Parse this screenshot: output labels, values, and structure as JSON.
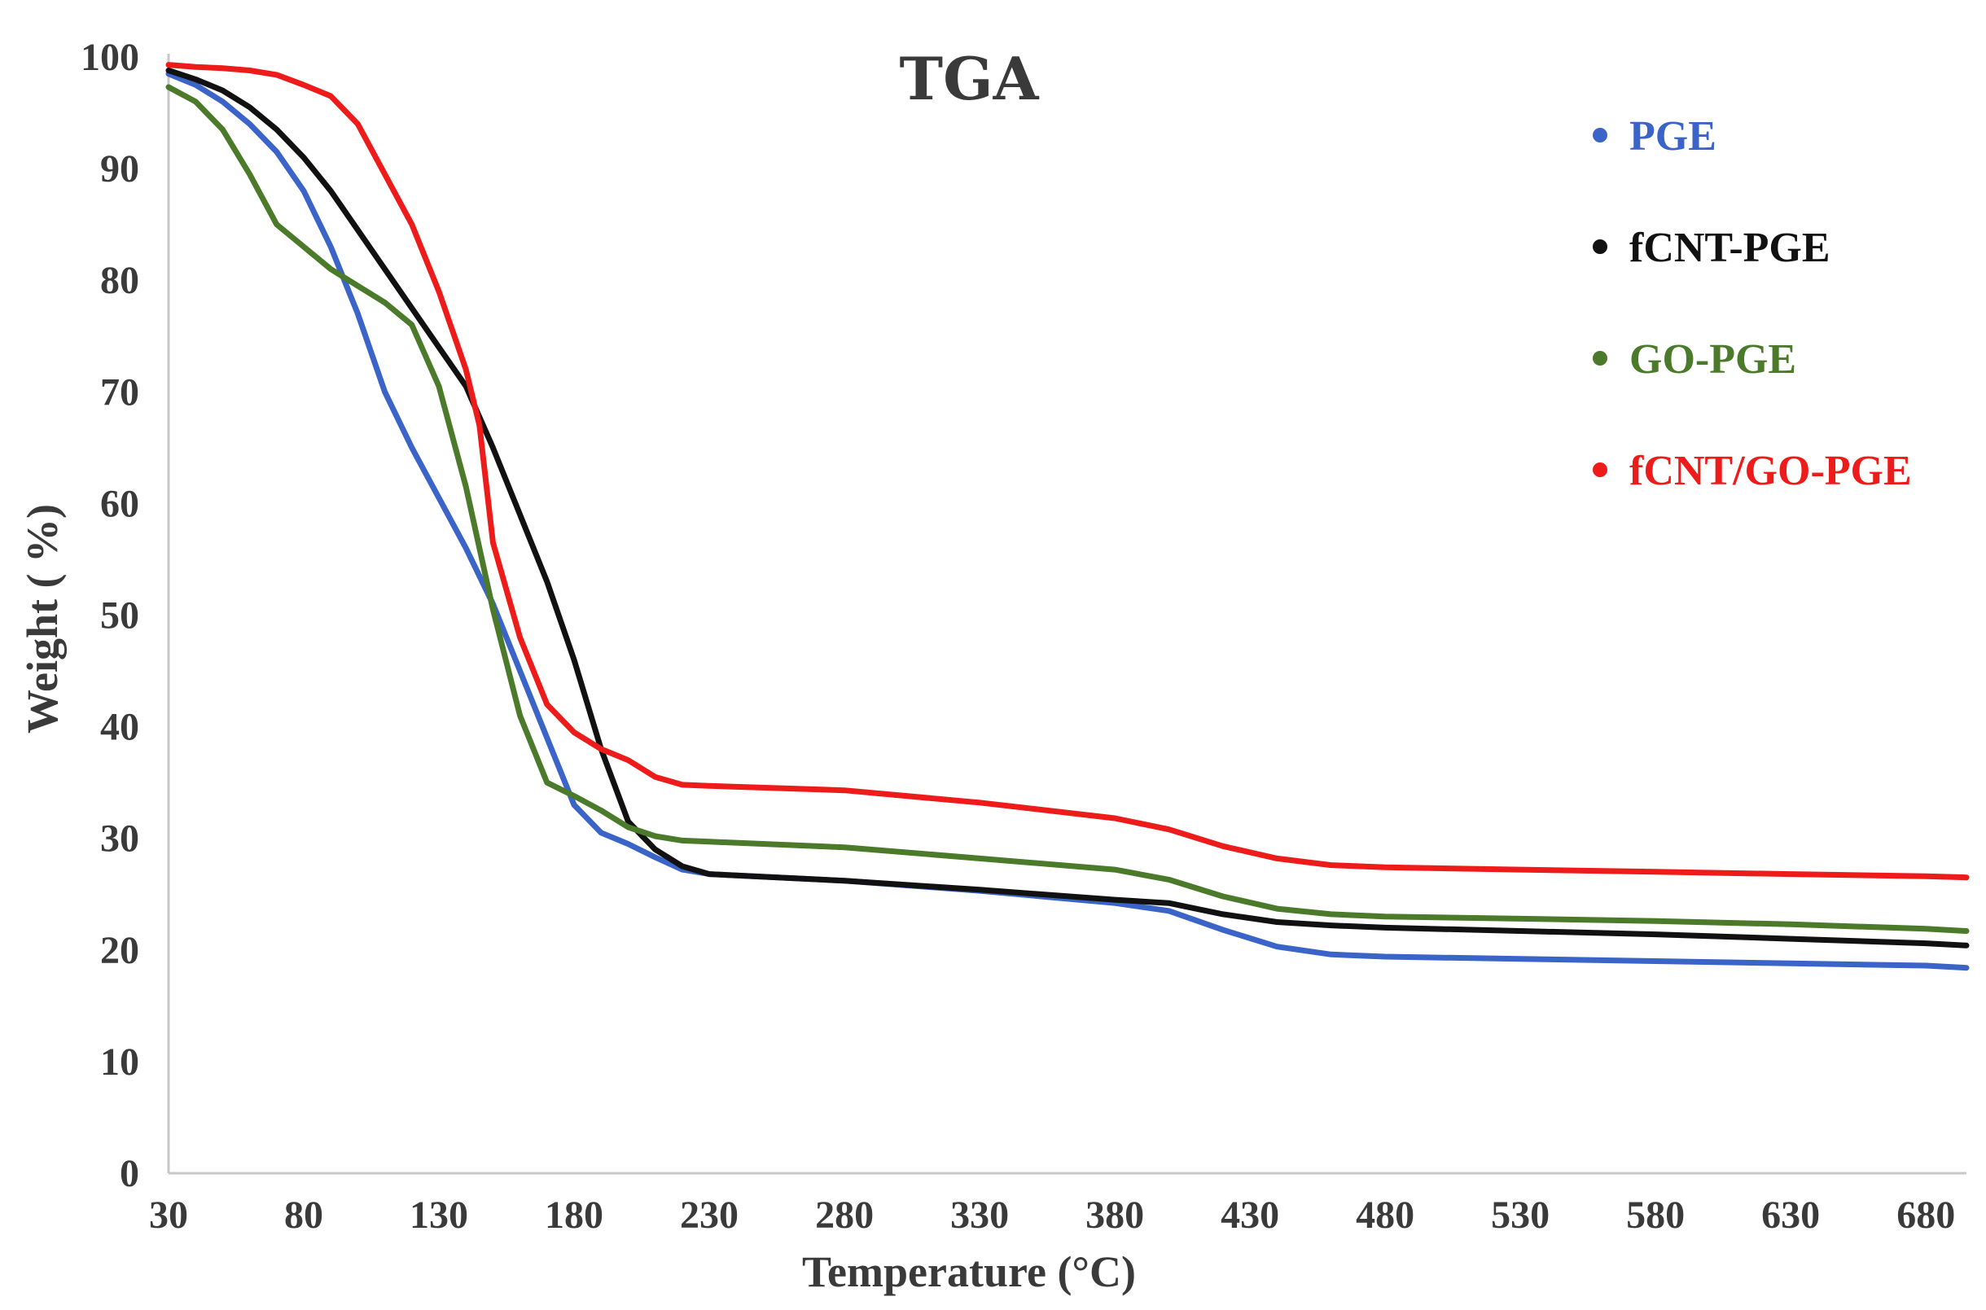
{
  "chart_data": {
    "type": "line",
    "title": "TGA",
    "xlabel": "Temperature (°C)",
    "ylabel": "Weight ( %)",
    "xlim": [
      30,
      695
    ],
    "ylim": [
      0,
      100
    ],
    "x_ticks": [
      30,
      80,
      130,
      180,
      230,
      280,
      330,
      380,
      430,
      480,
      530,
      580,
      630,
      680
    ],
    "y_ticks": [
      0,
      10,
      20,
      30,
      40,
      50,
      60,
      70,
      80,
      90,
      100
    ],
    "grid": false,
    "legend_position": "top-right",
    "series": [
      {
        "name": "PGE",
        "color": "#3b64c8",
        "points": [
          [
            30,
            98.5
          ],
          [
            40,
            97.5
          ],
          [
            50,
            96
          ],
          [
            60,
            94
          ],
          [
            70,
            91.5
          ],
          [
            80,
            88
          ],
          [
            90,
            83
          ],
          [
            100,
            77
          ],
          [
            110,
            70
          ],
          [
            120,
            65
          ],
          [
            130,
            60.5
          ],
          [
            140,
            56
          ],
          [
            150,
            51
          ],
          [
            160,
            45
          ],
          [
            170,
            39
          ],
          [
            180,
            33
          ],
          [
            190,
            30.5
          ],
          [
            200,
            29.5
          ],
          [
            210,
            28.3
          ],
          [
            220,
            27.2
          ],
          [
            230,
            26.8
          ],
          [
            280,
            26.2
          ],
          [
            330,
            25.3
          ],
          [
            380,
            24.2
          ],
          [
            400,
            23.5
          ],
          [
            420,
            21.8
          ],
          [
            440,
            20.3
          ],
          [
            460,
            19.6
          ],
          [
            480,
            19.4
          ],
          [
            530,
            19.2
          ],
          [
            580,
            19.0
          ],
          [
            630,
            18.8
          ],
          [
            680,
            18.6
          ],
          [
            695,
            18.4
          ]
        ]
      },
      {
        "name": "fCNT-PGE",
        "color": "#111111",
        "points": [
          [
            30,
            98.8
          ],
          [
            40,
            98
          ],
          [
            50,
            97
          ],
          [
            60,
            95.5
          ],
          [
            70,
            93.5
          ],
          [
            80,
            91
          ],
          [
            90,
            88
          ],
          [
            100,
            84.5
          ],
          [
            110,
            81
          ],
          [
            120,
            77.5
          ],
          [
            130,
            74
          ],
          [
            140,
            70.5
          ],
          [
            150,
            65
          ],
          [
            160,
            59
          ],
          [
            170,
            53
          ],
          [
            180,
            46
          ],
          [
            190,
            38
          ],
          [
            200,
            31.5
          ],
          [
            210,
            29
          ],
          [
            220,
            27.5
          ],
          [
            230,
            26.8
          ],
          [
            280,
            26.2
          ],
          [
            330,
            25.4
          ],
          [
            380,
            24.5
          ],
          [
            400,
            24.2
          ],
          [
            420,
            23.2
          ],
          [
            440,
            22.5
          ],
          [
            460,
            22.2
          ],
          [
            480,
            22.0
          ],
          [
            530,
            21.7
          ],
          [
            580,
            21.4
          ],
          [
            630,
            21.0
          ],
          [
            680,
            20.6
          ],
          [
            695,
            20.4
          ]
        ]
      },
      {
        "name": "GO-PGE",
        "color": "#4a7a2a",
        "points": [
          [
            30,
            97.3
          ],
          [
            40,
            96
          ],
          [
            50,
            93.5
          ],
          [
            60,
            89.5
          ],
          [
            70,
            85
          ],
          [
            80,
            83
          ],
          [
            90,
            81
          ],
          [
            100,
            79.5
          ],
          [
            110,
            78
          ],
          [
            120,
            76
          ],
          [
            130,
            70.5
          ],
          [
            140,
            61.5
          ],
          [
            150,
            50.5
          ],
          [
            160,
            41
          ],
          [
            170,
            35
          ],
          [
            180,
            33.8
          ],
          [
            190,
            32.5
          ],
          [
            200,
            31
          ],
          [
            210,
            30.2
          ],
          [
            220,
            29.8
          ],
          [
            230,
            29.7
          ],
          [
            280,
            29.2
          ],
          [
            330,
            28.2
          ],
          [
            380,
            27.2
          ],
          [
            400,
            26.3
          ],
          [
            420,
            24.8
          ],
          [
            440,
            23.7
          ],
          [
            460,
            23.2
          ],
          [
            480,
            23.0
          ],
          [
            530,
            22.8
          ],
          [
            580,
            22.6
          ],
          [
            630,
            22.3
          ],
          [
            680,
            21.9
          ],
          [
            695,
            21.7
          ]
        ]
      },
      {
        "name": "fCNT/GO-PGE",
        "color": "#ee1b1b",
        "points": [
          [
            30,
            99.3
          ],
          [
            40,
            99.1
          ],
          [
            50,
            99
          ],
          [
            60,
            98.8
          ],
          [
            70,
            98.4
          ],
          [
            80,
            97.5
          ],
          [
            90,
            96.5
          ],
          [
            100,
            94
          ],
          [
            110,
            89.5
          ],
          [
            120,
            85
          ],
          [
            130,
            79
          ],
          [
            140,
            72
          ],
          [
            145,
            67
          ],
          [
            150,
            56.5
          ],
          [
            160,
            48
          ],
          [
            170,
            42
          ],
          [
            180,
            39.5
          ],
          [
            190,
            38
          ],
          [
            200,
            37
          ],
          [
            210,
            35.5
          ],
          [
            220,
            34.8
          ],
          [
            230,
            34.7
          ],
          [
            280,
            34.3
          ],
          [
            330,
            33.2
          ],
          [
            380,
            31.8
          ],
          [
            400,
            30.8
          ],
          [
            420,
            29.3
          ],
          [
            440,
            28.2
          ],
          [
            460,
            27.6
          ],
          [
            480,
            27.4
          ],
          [
            530,
            27.2
          ],
          [
            580,
            27.0
          ],
          [
            630,
            26.8
          ],
          [
            680,
            26.6
          ],
          [
            695,
            26.5
          ]
        ]
      }
    ]
  }
}
